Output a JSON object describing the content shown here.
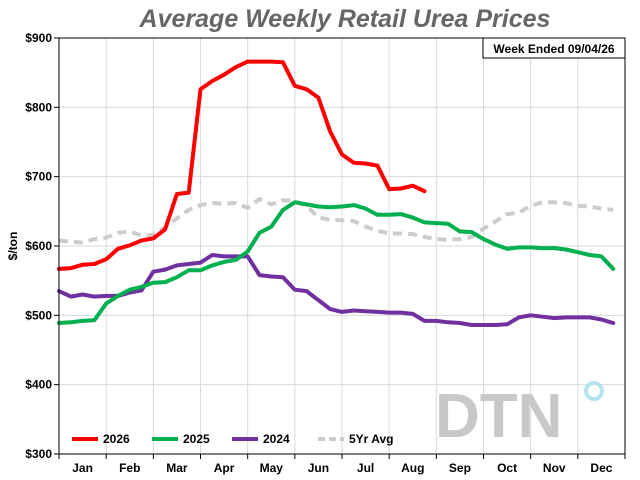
{
  "chart_data": {
    "type": "line",
    "title": "Average Weekly Retail Urea Prices",
    "ylabel": "$/ton",
    "xlabel": "",
    "ylim": [
      300,
      900
    ],
    "yticks": [
      "$300",
      "$400",
      "$500",
      "$600",
      "$700",
      "$800",
      "$900"
    ],
    "months": [
      "Jan",
      "Feb",
      "Mar",
      "Apr",
      "May",
      "Jun",
      "Jul",
      "Aug",
      "Sep",
      "Oct",
      "Nov",
      "Dec"
    ],
    "grid": true,
    "legend_position": "bottom-left",
    "annotation": "Week Ended 09/04/26",
    "watermark": "DTN",
    "series": [
      {
        "name": "2026",
        "color": "#ff0000",
        "dash": false,
        "x": [
          0,
          0.25,
          0.5,
          0.75,
          1,
          1.25,
          1.5,
          1.75,
          2,
          2.25,
          2.5,
          2.75,
          3,
          3.25,
          3.5,
          3.75,
          4,
          4.25,
          4.5,
          4.75,
          5,
          5.25,
          5.5,
          5.75,
          6,
          6.25,
          6.5,
          6.75,
          7,
          7.25,
          7.5,
          7.75
        ],
        "y": [
          567,
          568,
          573,
          574,
          581,
          596,
          601,
          608,
          611,
          624,
          675,
          677,
          826,
          838,
          847,
          858,
          866,
          866,
          866,
          865,
          831,
          826,
          814,
          765,
          732,
          720,
          719,
          716,
          682,
          683,
          687,
          679
        ]
      },
      {
        "name": "2025",
        "color": "#00b050",
        "dash": false,
        "x": [
          0,
          0.25,
          0.5,
          0.75,
          1,
          1.25,
          1.5,
          1.75,
          2,
          2.25,
          2.5,
          2.75,
          3,
          3.25,
          3.5,
          3.75,
          4,
          4.25,
          4.5,
          4.75,
          5,
          5.25,
          5.5,
          5.75,
          6,
          6.25,
          6.5,
          6.75,
          7,
          7.25,
          7.5,
          7.75,
          8,
          8.25,
          8.5,
          8.75,
          9,
          9.25,
          9.5,
          9.75,
          10,
          10.25,
          10.5,
          10.75,
          11,
          11.25,
          11.5,
          11.75
        ],
        "y": [
          489,
          490,
          492,
          493,
          517,
          528,
          537,
          541,
          547,
          548,
          555,
          565,
          565,
          572,
          577,
          580,
          592,
          619,
          628,
          652,
          663,
          660,
          657,
          656,
          657,
          659,
          654,
          645,
          645,
          646,
          641,
          634,
          633,
          632,
          621,
          620,
          610,
          602,
          596,
          598,
          598,
          597,
          597,
          595,
          591,
          587,
          585,
          567
        ]
      },
      {
        "name": "2024",
        "color": "#7030a0",
        "dash": false,
        "x": [
          0,
          0.25,
          0.5,
          0.75,
          1,
          1.25,
          1.5,
          1.75,
          2,
          2.25,
          2.5,
          2.75,
          3,
          3.25,
          3.5,
          3.75,
          4,
          4.25,
          4.5,
          4.75,
          5,
          5.25,
          5.5,
          5.75,
          6,
          6.25,
          6.5,
          6.75,
          7,
          7.25,
          7.5,
          7.75,
          8,
          8.25,
          8.5,
          8.75,
          9,
          9.25,
          9.5,
          9.75,
          10,
          10.25,
          10.5,
          10.75,
          11,
          11.25,
          11.5,
          11.75
        ],
        "y": [
          535,
          527,
          530,
          527,
          528,
          528,
          533,
          536,
          563,
          566,
          572,
          574,
          576,
          587,
          585,
          585,
          585,
          558,
          556,
          555,
          537,
          535,
          522,
          509,
          505,
          507,
          506,
          505,
          504,
          504,
          502,
          492,
          492,
          490,
          489,
          486,
          486,
          486,
          487,
          497,
          500,
          498,
          496,
          497,
          497,
          497,
          494,
          489
        ]
      },
      {
        "name": "5Yr Avg",
        "color": "#cccccc",
        "dash": true,
        "x": [
          0,
          0.25,
          0.5,
          0.75,
          1,
          1.25,
          1.5,
          1.75,
          2,
          2.25,
          2.5,
          2.75,
          3,
          3.25,
          3.5,
          3.75,
          4,
          4.25,
          4.5,
          4.75,
          5,
          5.25,
          5.5,
          5.75,
          6,
          6.25,
          6.5,
          6.75,
          7,
          7.25,
          7.5,
          7.75,
          8,
          8.25,
          8.5,
          8.75,
          9,
          9.25,
          9.5,
          9.75,
          10,
          10.25,
          10.5,
          10.75,
          11,
          11.25,
          11.5,
          11.75
        ],
        "y": [
          608,
          606,
          605,
          610,
          612,
          619,
          621,
          615,
          616,
          627,
          640,
          652,
          659,
          662,
          661,
          662,
          655,
          668,
          660,
          666,
          665,
          658,
          641,
          638,
          637,
          636,
          628,
          622,
          618,
          618,
          617,
          613,
          610,
          609,
          610,
          613,
          625,
          635,
          646,
          648,
          658,
          663,
          663,
          662,
          658,
          657,
          654,
          652
        ]
      }
    ]
  }
}
